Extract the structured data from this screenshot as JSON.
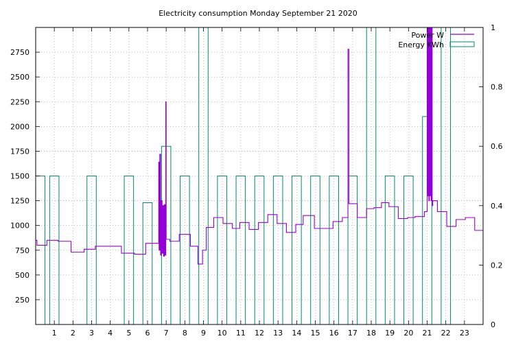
{
  "chart_data": {
    "type": "line",
    "title": "Electricity consumption Monday September 21 2020",
    "xlim": [
      0,
      24
    ],
    "xticks": [
      1,
      2,
      3,
      4,
      5,
      6,
      7,
      8,
      9,
      10,
      11,
      12,
      13,
      14,
      15,
      16,
      17,
      18,
      19,
      20,
      21,
      22,
      23
    ],
    "y1lim": [
      0,
      3000
    ],
    "y1ticks": [
      250,
      500,
      750,
      1000,
      1250,
      1500,
      1750,
      2000,
      2250,
      2500,
      2750
    ],
    "y2lim": [
      0,
      1
    ],
    "y2ticks": [
      0,
      0.2,
      0.4,
      0.6,
      0.8,
      1
    ],
    "grid": true,
    "legend_position": "top-right",
    "series": [
      {
        "name": "Power W",
        "color": "#9400d3",
        "axis": "y1",
        "style": "step",
        "points": [
          [
            0,
            850
          ],
          [
            0.07,
            800
          ],
          [
            0.6,
            850
          ],
          [
            1.2,
            840
          ],
          [
            1.9,
            730
          ],
          [
            2.6,
            760
          ],
          [
            3.2,
            790
          ],
          [
            4.6,
            720
          ],
          [
            5.3,
            710
          ],
          [
            5.9,
            820
          ],
          [
            6.6,
            1640
          ],
          [
            6.62,
            750
          ],
          [
            6.66,
            1720
          ],
          [
            6.7,
            700
          ],
          [
            6.74,
            1250
          ],
          [
            6.78,
            720
          ],
          [
            6.82,
            1200
          ],
          [
            6.86,
            690
          ],
          [
            6.9,
            1210
          ],
          [
            6.94,
            700
          ],
          [
            6.98,
            2250
          ],
          [
            7.0,
            860
          ],
          [
            7.2,
            840
          ],
          [
            7.7,
            910
          ],
          [
            8.3,
            790
          ],
          [
            8.7,
            610
          ],
          [
            8.95,
            750
          ],
          [
            9.15,
            980
          ],
          [
            9.55,
            1080
          ],
          [
            10.05,
            1020
          ],
          [
            10.55,
            970
          ],
          [
            10.95,
            1030
          ],
          [
            11.45,
            960
          ],
          [
            11.95,
            1030
          ],
          [
            12.45,
            1110
          ],
          [
            12.95,
            1020
          ],
          [
            13.45,
            930
          ],
          [
            13.95,
            1010
          ],
          [
            14.35,
            1100
          ],
          [
            14.95,
            970
          ],
          [
            15.95,
            1040
          ],
          [
            16.45,
            1080
          ],
          [
            16.75,
            2780
          ],
          [
            16.8,
            1220
          ],
          [
            17.25,
            1080
          ],
          [
            17.75,
            1170
          ],
          [
            18.15,
            1180
          ],
          [
            18.55,
            1230
          ],
          [
            18.95,
            1190
          ],
          [
            19.45,
            1070
          ],
          [
            19.95,
            1080
          ],
          [
            20.35,
            1090
          ],
          [
            20.85,
            1140
          ],
          [
            21.0,
            3000
          ],
          [
            21.03,
            1300
          ],
          [
            21.06,
            3000
          ],
          [
            21.09,
            1250
          ],
          [
            21.12,
            3000
          ],
          [
            21.15,
            1300
          ],
          [
            21.18,
            3000
          ],
          [
            21.21,
            1250
          ],
          [
            21.24,
            3000
          ],
          [
            21.27,
            1200
          ],
          [
            21.3,
            1250
          ],
          [
            21.55,
            1140
          ],
          [
            22.05,
            990
          ],
          [
            22.55,
            1060
          ],
          [
            22.85,
            1060
          ],
          [
            23.05,
            1080
          ],
          [
            23.55,
            950
          ],
          [
            24,
            950
          ]
        ]
      },
      {
        "name": "Energy KWh",
        "color": "#008b6b",
        "axis": "y2",
        "style": "bars",
        "points": [
          [
            0.25,
            0.5
          ],
          [
            1,
            0.5
          ],
          [
            3,
            0.5
          ],
          [
            5,
            0.5
          ],
          [
            6,
            0.41
          ],
          [
            7,
            0.6
          ],
          [
            8,
            0.5
          ],
          [
            9,
            1
          ],
          [
            10,
            0.5
          ],
          [
            11,
            0.5
          ],
          [
            12,
            0.5
          ],
          [
            13,
            0.5
          ],
          [
            14,
            0.5
          ],
          [
            15,
            0.5
          ],
          [
            16,
            0.5
          ],
          [
            17,
            0.5
          ],
          [
            18,
            1
          ],
          [
            19,
            0.5
          ],
          [
            20,
            0.5
          ],
          [
            21,
            0.7
          ],
          [
            22,
            1
          ]
        ]
      }
    ]
  }
}
